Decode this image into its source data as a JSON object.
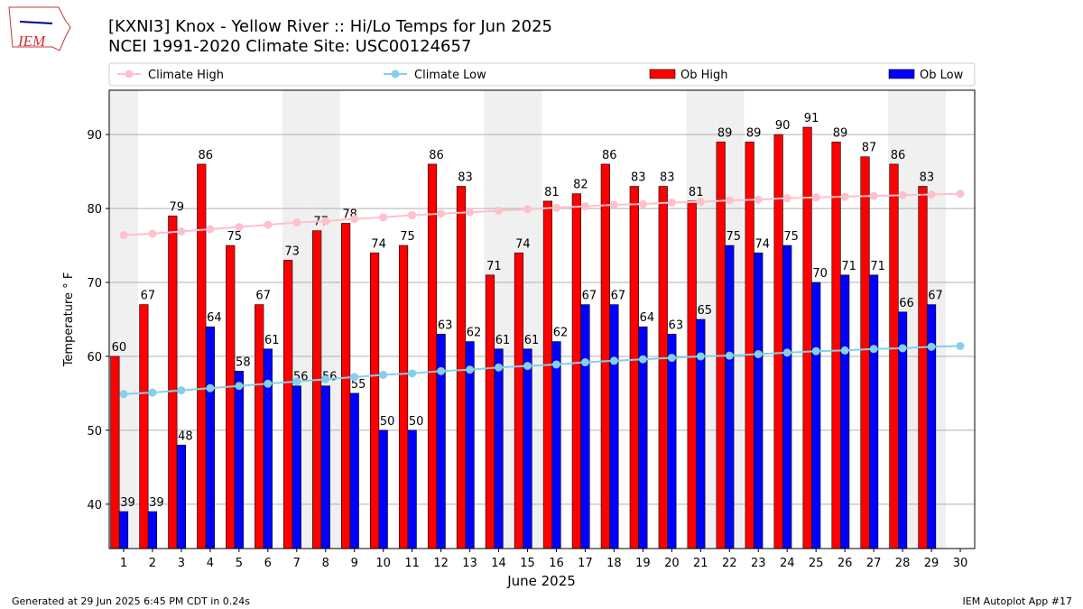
{
  "header": {
    "logo_text": "IEM"
  },
  "chart_data": {
    "type": "bar",
    "title": "[KXNI3] Knox - Yellow River :: Hi/Lo Temps for Jun 2025",
    "subtitle": "NCEI 1991-2020 Climate Site: USC00124657",
    "ylabel": "Temperature ° F",
    "xlabel": "June 2025",
    "x": [
      1,
      2,
      3,
      4,
      5,
      6,
      7,
      8,
      9,
      10,
      11,
      12,
      13,
      14,
      15,
      16,
      17,
      18,
      19,
      20,
      21,
      22,
      23,
      24,
      25,
      26,
      27,
      28,
      29,
      30
    ],
    "series": [
      {
        "name": "Climate High",
        "color": "#ffc0cb",
        "style": "line",
        "values": [
          76.4,
          76.6,
          76.9,
          77.2,
          77.5,
          77.8,
          78.1,
          78.3,
          78.6,
          78.8,
          79.1,
          79.3,
          79.5,
          79.7,
          79.9,
          80.1,
          80.3,
          80.5,
          80.6,
          80.8,
          80.9,
          81.1,
          81.2,
          81.4,
          81.5,
          81.6,
          81.7,
          81.8,
          81.9,
          82.0
        ]
      },
      {
        "name": "Climate Low",
        "color": "#87ceeb",
        "style": "line",
        "values": [
          54.9,
          55.1,
          55.4,
          55.7,
          56.0,
          56.3,
          56.6,
          56.9,
          57.2,
          57.5,
          57.7,
          58.0,
          58.2,
          58.5,
          58.7,
          58.9,
          59.2,
          59.4,
          59.6,
          59.8,
          60.0,
          60.1,
          60.3,
          60.5,
          60.7,
          60.8,
          61.0,
          61.1,
          61.3,
          61.4
        ]
      },
      {
        "name": "Ob High",
        "color": "#ff0000",
        "style": "bar",
        "values": [
          60,
          67,
          79,
          86,
          75,
          67,
          73,
          77,
          78,
          74,
          75,
          86,
          83,
          71,
          74,
          81,
          82,
          86,
          83,
          83,
          81,
          89,
          89,
          90,
          91,
          89,
          87,
          86,
          83,
          null
        ]
      },
      {
        "name": "Ob Low",
        "color": "#0000ff",
        "style": "bar",
        "values": [
          39,
          39,
          48,
          64,
          58,
          61,
          56,
          56,
          55,
          50,
          50,
          63,
          62,
          61,
          61,
          62,
          67,
          67,
          64,
          63,
          65,
          75,
          74,
          75,
          70,
          71,
          71,
          66,
          67,
          null
        ]
      }
    ],
    "shaded_x": [
      1,
      7,
      8,
      14,
      15,
      21,
      22,
      28,
      29
    ],
    "xlim": [
      0.5,
      30.5
    ],
    "ylim": [
      34,
      96
    ],
    "xticks": [
      1,
      2,
      3,
      4,
      5,
      6,
      7,
      8,
      9,
      10,
      11,
      12,
      13,
      14,
      15,
      16,
      17,
      18,
      19,
      20,
      21,
      22,
      23,
      24,
      25,
      26,
      27,
      28,
      29,
      30
    ],
    "yticks": [
      40,
      50,
      60,
      70,
      80,
      90
    ],
    "grid": true,
    "legend": "top"
  },
  "footer": {
    "left": "Generated at 29 Jun 2025 6:45 PM CDT in 0.24s",
    "right": "IEM Autoplot App #17"
  }
}
